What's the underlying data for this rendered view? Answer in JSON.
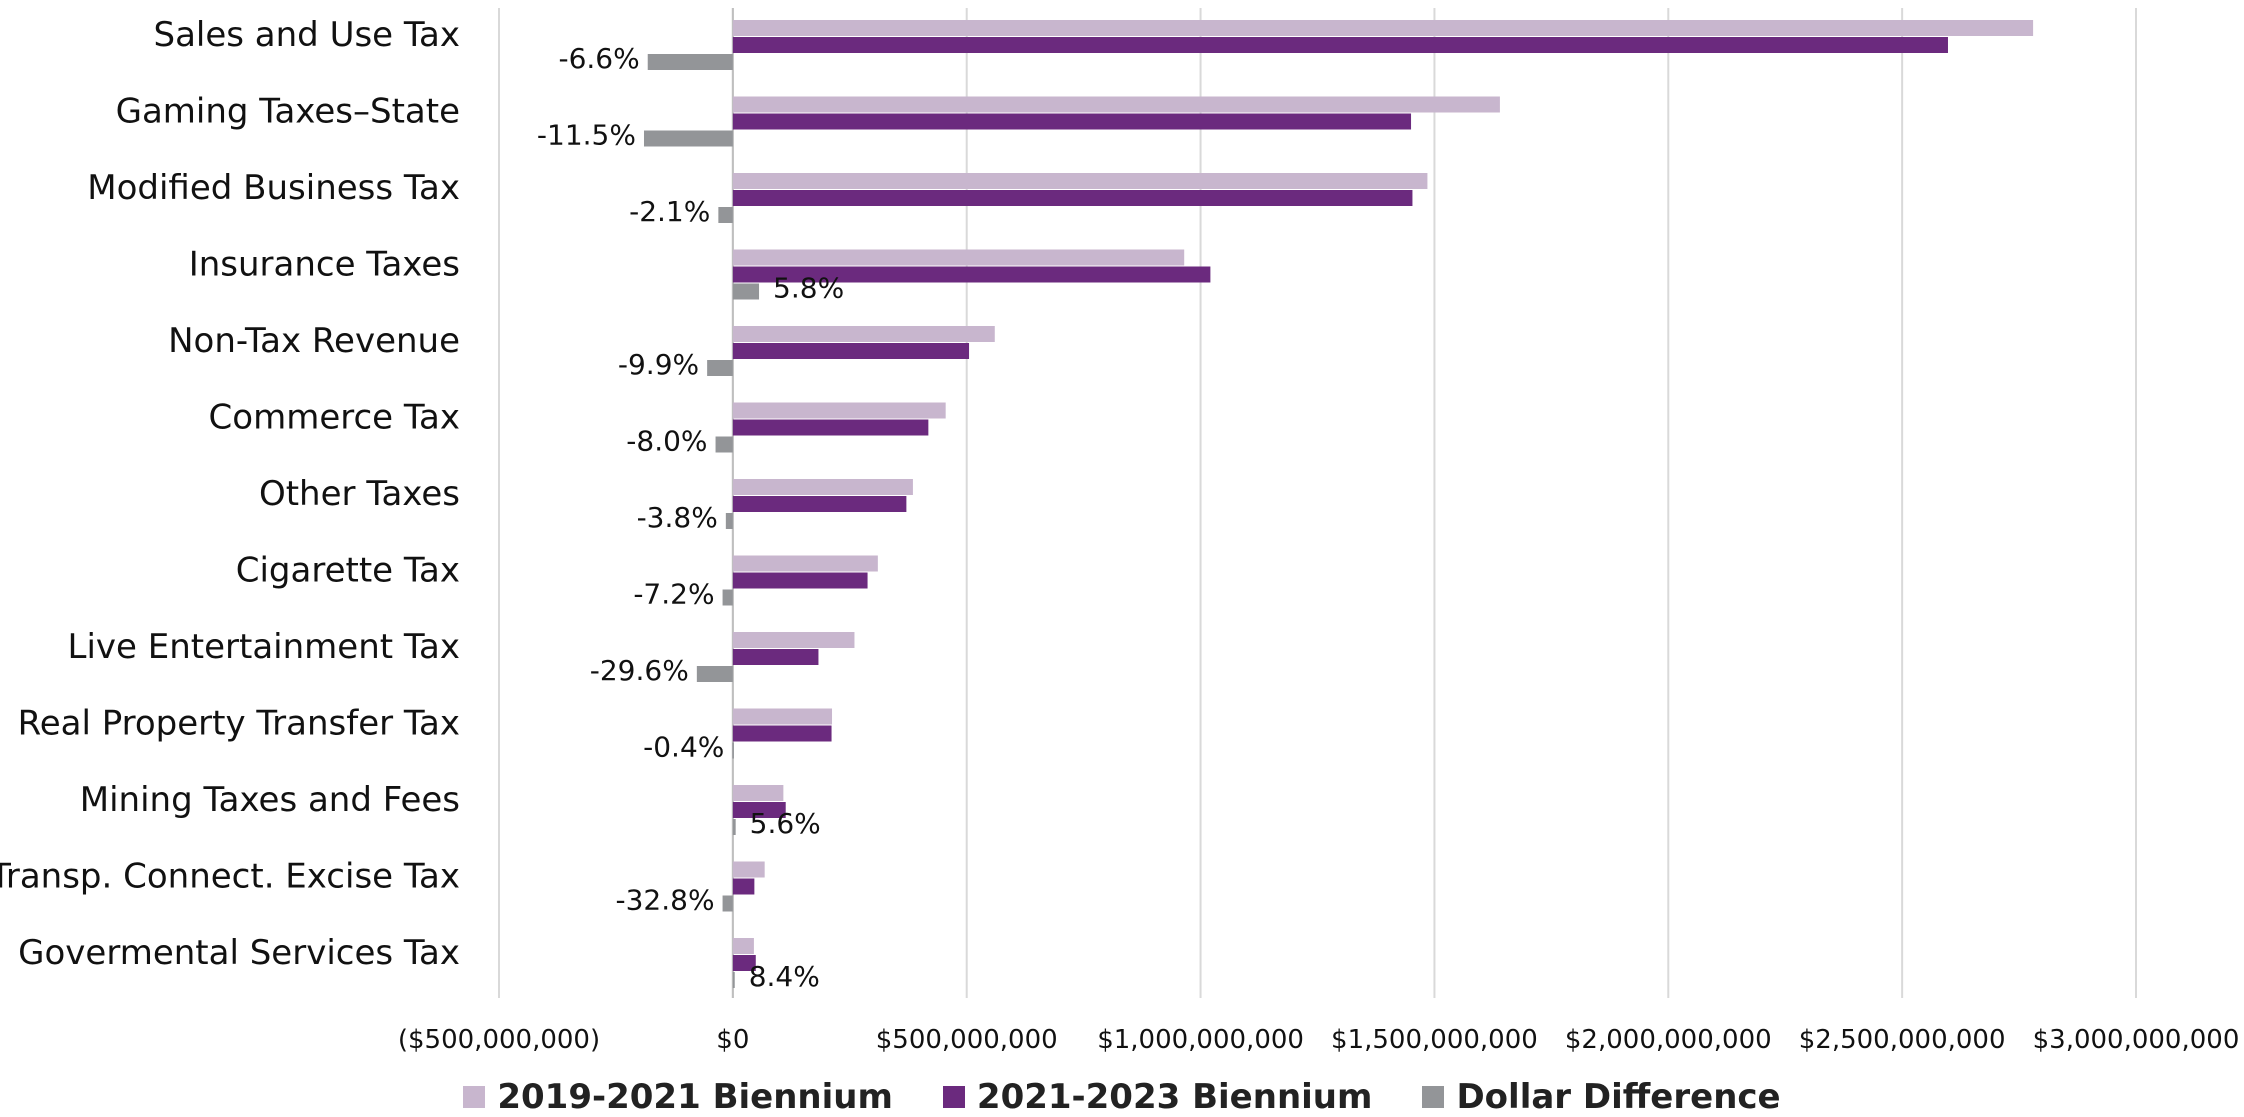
{
  "chart_data": {
    "type": "bar",
    "orientation": "horizontal",
    "title": "",
    "xlabel": "",
    "ylabel": "",
    "xlim": [
      -500000000,
      3000000000
    ],
    "x_ticks": [
      -500000000,
      0,
      500000000,
      1000000000,
      1500000000,
      2000000000,
      2500000000,
      3000000000
    ],
    "x_tick_labels": [
      "($500,000,000)",
      "$0",
      "$500,000,000",
      "$1,000,000,000",
      "$1,500,000,000",
      "$2,000,000,000",
      "$2,500,000,000",
      "$3,000,000,000"
    ],
    "negative_tick_color": "#e8201c",
    "grid": "vertical",
    "legend_position": "bottom",
    "categories": [
      "Sales and Use Tax",
      "Gaming Taxes–State",
      "Modified Business Tax",
      "Insurance Taxes",
      "Non-Tax Revenue",
      "Commerce Tax",
      "Other Taxes",
      "Cigarette Tax",
      "Live Entertainment Tax",
      "Real Property Transfer Tax",
      "Mining Taxes and Fees",
      "Transp. Connect. Excise Tax",
      "Govermental Services Tax"
    ],
    "series": [
      {
        "name": "2019-2021 Biennium",
        "color": "#c8b6ce",
        "values": [
          2780000000,
          1640000000,
          1485000000,
          965000000,
          560000000,
          455000000,
          385000000,
          310000000,
          260000000,
          212000000,
          108000000,
          68000000,
          45000000
        ]
      },
      {
        "name": "2021-2023 Biennium",
        "color": "#6b2a7e",
        "values": [
          2598000000,
          1450000000,
          1453000000,
          1021000000,
          505000000,
          418000000,
          371000000,
          288000000,
          183000000,
          211000000,
          113000000,
          46000000,
          49000000
        ]
      },
      {
        "name": "Dollar Difference",
        "color": "#939598",
        "values": [
          -182000000,
          -190000000,
          -31000000,
          56000000,
          -55000000,
          -37000000,
          -15000000,
          -22000000,
          -77000000,
          -1000000,
          6000000,
          -22000000,
          4000000
        ]
      }
    ],
    "data_labels": [
      "-6.6%",
      "-11.5%",
      "-2.1%",
      "5.8%",
      "-9.9%",
      "-8.0%",
      "-3.8%",
      "-7.2%",
      "-29.6%",
      "-0.4%",
      "5.6%",
      "-32.8%",
      "8.4%"
    ]
  }
}
